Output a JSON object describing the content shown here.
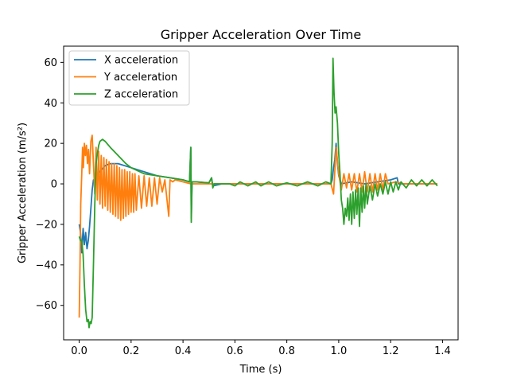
{
  "chart_data": {
    "type": "line",
    "title": "Gripper Acceleration Over Time",
    "xlabel": "Time (s)",
    "ylabel": "Gripper Acceleration (m/s²)",
    "xlim": [
      -0.06,
      1.46
    ],
    "ylim": [
      -77,
      68
    ],
    "x_ticks": [
      0.0,
      0.2,
      0.4,
      0.6,
      0.8,
      1.0,
      1.2,
      1.4
    ],
    "x_tick_labels": [
      "0.0",
      "0.2",
      "0.4",
      "0.6",
      "0.8",
      "1.0",
      "1.2",
      "1.4"
    ],
    "y_ticks": [
      -60,
      -40,
      -20,
      0,
      20,
      40,
      60
    ],
    "y_tick_labels": [
      "−60",
      "−40",
      "−20",
      "0",
      "20",
      "40",
      "60"
    ],
    "grid": false,
    "legend_position": "top-left",
    "series": [
      {
        "name": "X acceleration",
        "color": "#1f77b4",
        "points": [
          [
            0.0,
            -20
          ],
          [
            0.005,
            -24
          ],
          [
            0.01,
            -34
          ],
          [
            0.015,
            -22
          ],
          [
            0.02,
            -30
          ],
          [
            0.025,
            -24
          ],
          [
            0.03,
            -32
          ],
          [
            0.035,
            -28
          ],
          [
            0.04,
            -21
          ],
          [
            0.045,
            -12
          ],
          [
            0.05,
            -3
          ],
          [
            0.055,
            2
          ],
          [
            0.06,
            0
          ],
          [
            0.07,
            4
          ],
          [
            0.08,
            6
          ],
          [
            0.1,
            9
          ],
          [
            0.12,
            10
          ],
          [
            0.15,
            10
          ],
          [
            0.2,
            8
          ],
          [
            0.25,
            6
          ],
          [
            0.3,
            4
          ],
          [
            0.35,
            3
          ],
          [
            0.4,
            2
          ],
          [
            0.425,
            1
          ],
          [
            0.43,
            18
          ],
          [
            0.432,
            -17
          ],
          [
            0.435,
            1
          ],
          [
            0.45,
            1
          ],
          [
            0.5,
            0.5
          ],
          [
            0.51,
            3
          ],
          [
            0.515,
            -1
          ],
          [
            0.55,
            0
          ],
          [
            0.6,
            0
          ],
          [
            0.7,
            0
          ],
          [
            0.8,
            0
          ],
          [
            0.9,
            0
          ],
          [
            0.97,
            0
          ],
          [
            0.975,
            2
          ],
          [
            0.98,
            8
          ],
          [
            0.985,
            12
          ],
          [
            0.99,
            20
          ],
          [
            0.995,
            10
          ],
          [
            1.0,
            4
          ],
          [
            1.01,
            0
          ],
          [
            1.05,
            1
          ],
          [
            1.1,
            0
          ],
          [
            1.15,
            1
          ],
          [
            1.2,
            2
          ],
          [
            1.225,
            3
          ],
          [
            1.23,
            0
          ],
          [
            1.3,
            0
          ],
          [
            1.38,
            0
          ]
        ]
      },
      {
        "name": "Y acceleration",
        "color": "#ff7f0e",
        "points": [
          [
            0.0,
            -66
          ],
          [
            0.003,
            -40
          ],
          [
            0.006,
            -10
          ],
          [
            0.01,
            5
          ],
          [
            0.013,
            18
          ],
          [
            0.016,
            8
          ],
          [
            0.02,
            20
          ],
          [
            0.024,
            14
          ],
          [
            0.028,
            19
          ],
          [
            0.032,
            10
          ],
          [
            0.036,
            17
          ],
          [
            0.04,
            5
          ],
          [
            0.045,
            21
          ],
          [
            0.05,
            24
          ],
          [
            0.055,
            10
          ],
          [
            0.06,
            -5
          ],
          [
            0.065,
            18
          ],
          [
            0.07,
            -8
          ],
          [
            0.075,
            16
          ],
          [
            0.08,
            -10
          ],
          [
            0.085,
            14
          ],
          [
            0.09,
            -12
          ],
          [
            0.095,
            13
          ],
          [
            0.1,
            -11
          ],
          [
            0.105,
            12
          ],
          [
            0.11,
            -13
          ],
          [
            0.115,
            11
          ],
          [
            0.12,
            -14
          ],
          [
            0.125,
            10
          ],
          [
            0.13,
            -15
          ],
          [
            0.135,
            10
          ],
          [
            0.14,
            -16
          ],
          [
            0.145,
            9
          ],
          [
            0.15,
            -17
          ],
          [
            0.155,
            8
          ],
          [
            0.16,
            -18
          ],
          [
            0.165,
            7
          ],
          [
            0.17,
            -17
          ],
          [
            0.175,
            7
          ],
          [
            0.18,
            -16
          ],
          [
            0.185,
            6
          ],
          [
            0.19,
            -15
          ],
          [
            0.195,
            6
          ],
          [
            0.2,
            -14
          ],
          [
            0.205,
            5
          ],
          [
            0.21,
            -14
          ],
          [
            0.215,
            5
          ],
          [
            0.22,
            -13
          ],
          [
            0.23,
            4
          ],
          [
            0.24,
            -12
          ],
          [
            0.25,
            4
          ],
          [
            0.26,
            -11
          ],
          [
            0.27,
            3
          ],
          [
            0.28,
            -11
          ],
          [
            0.29,
            3
          ],
          [
            0.3,
            -10
          ],
          [
            0.31,
            3
          ],
          [
            0.32,
            -4
          ],
          [
            0.33,
            2
          ],
          [
            0.345,
            -16
          ],
          [
            0.35,
            2
          ],
          [
            0.36,
            1
          ],
          [
            0.37,
            2
          ],
          [
            0.4,
            1
          ],
          [
            0.43,
            0
          ],
          [
            0.45,
            0
          ],
          [
            0.5,
            0
          ],
          [
            0.52,
            0
          ],
          [
            0.55,
            0
          ],
          [
            0.6,
            0
          ],
          [
            0.7,
            0
          ],
          [
            0.8,
            0
          ],
          [
            0.9,
            0
          ],
          [
            0.97,
            0
          ],
          [
            0.98,
            -5
          ],
          [
            0.99,
            18
          ],
          [
            1.0,
            5
          ],
          [
            1.01,
            -3
          ],
          [
            1.02,
            5
          ],
          [
            1.03,
            -2
          ],
          [
            1.04,
            5
          ],
          [
            1.05,
            -3
          ],
          [
            1.06,
            5
          ],
          [
            1.07,
            -4
          ],
          [
            1.08,
            5
          ],
          [
            1.09,
            -4
          ],
          [
            1.1,
            6
          ],
          [
            1.11,
            -4
          ],
          [
            1.12,
            5
          ],
          [
            1.13,
            -4
          ],
          [
            1.14,
            5
          ],
          [
            1.15,
            -3
          ],
          [
            1.16,
            5
          ],
          [
            1.17,
            -3
          ],
          [
            1.18,
            5
          ],
          [
            1.19,
            0
          ],
          [
            1.22,
            1
          ],
          [
            1.25,
            0
          ],
          [
            1.38,
            0
          ]
        ]
      },
      {
        "name": "Z acceleration",
        "color": "#2ca02c",
        "points": [
          [
            0.0,
            -26
          ],
          [
            0.005,
            -28
          ],
          [
            0.01,
            -28
          ],
          [
            0.015,
            -35
          ],
          [
            0.02,
            -50
          ],
          [
            0.025,
            -62
          ],
          [
            0.03,
            -68
          ],
          [
            0.035,
            -67
          ],
          [
            0.038,
            -71
          ],
          [
            0.042,
            -68
          ],
          [
            0.046,
            -69
          ],
          [
            0.05,
            -66
          ],
          [
            0.055,
            -40
          ],
          [
            0.06,
            -10
          ],
          [
            0.065,
            10
          ],
          [
            0.07,
            15
          ],
          [
            0.075,
            19
          ],
          [
            0.08,
            21
          ],
          [
            0.09,
            22
          ],
          [
            0.1,
            21
          ],
          [
            0.12,
            18
          ],
          [
            0.15,
            14
          ],
          [
            0.18,
            10
          ],
          [
            0.2,
            8
          ],
          [
            0.25,
            5
          ],
          [
            0.3,
            4
          ],
          [
            0.35,
            3
          ],
          [
            0.4,
            2
          ],
          [
            0.425,
            1
          ],
          [
            0.43,
            18
          ],
          [
            0.432,
            -19
          ],
          [
            0.435,
            1
          ],
          [
            0.45,
            1
          ],
          [
            0.5,
            0.5
          ],
          [
            0.51,
            3
          ],
          [
            0.515,
            -2
          ],
          [
            0.52,
            0
          ],
          [
            0.55,
            0
          ],
          [
            0.58,
            0
          ],
          [
            0.6,
            -1
          ],
          [
            0.62,
            1
          ],
          [
            0.65,
            -1
          ],
          [
            0.68,
            1
          ],
          [
            0.7,
            -1
          ],
          [
            0.73,
            1
          ],
          [
            0.76,
            -1
          ],
          [
            0.8,
            0.5
          ],
          [
            0.84,
            -1
          ],
          [
            0.88,
            1
          ],
          [
            0.92,
            -1
          ],
          [
            0.95,
            1
          ],
          [
            0.97,
            0
          ],
          [
            0.975,
            20
          ],
          [
            0.978,
            62
          ],
          [
            0.982,
            45
          ],
          [
            0.986,
            35
          ],
          [
            0.99,
            38
          ],
          [
            0.995,
            30
          ],
          [
            1.0,
            15
          ],
          [
            1.005,
            5
          ],
          [
            1.01,
            -8
          ],
          [
            1.015,
            -12
          ],
          [
            1.02,
            -20
          ],
          [
            1.025,
            -12
          ],
          [
            1.03,
            -16
          ],
          [
            1.035,
            -7
          ],
          [
            1.04,
            -18
          ],
          [
            1.045,
            -5
          ],
          [
            1.05,
            -20
          ],
          [
            1.055,
            -4
          ],
          [
            1.06,
            -17
          ],
          [
            1.065,
            -3
          ],
          [
            1.07,
            -15
          ],
          [
            1.075,
            -2
          ],
          [
            1.08,
            -21
          ],
          [
            1.085,
            -2
          ],
          [
            1.09,
            -14
          ],
          [
            1.095,
            -1
          ],
          [
            1.1,
            -12
          ],
          [
            1.105,
            0
          ],
          [
            1.11,
            -10
          ],
          [
            1.12,
            -1
          ],
          [
            1.13,
            -8
          ],
          [
            1.14,
            0
          ],
          [
            1.15,
            -6
          ],
          [
            1.16,
            0
          ],
          [
            1.17,
            -5
          ],
          [
            1.18,
            1
          ],
          [
            1.19,
            -5
          ],
          [
            1.2,
            1
          ],
          [
            1.21,
            -4
          ],
          [
            1.22,
            1
          ],
          [
            1.23,
            -3
          ],
          [
            1.24,
            1
          ],
          [
            1.26,
            -2
          ],
          [
            1.28,
            2
          ],
          [
            1.3,
            -1
          ],
          [
            1.32,
            2
          ],
          [
            1.34,
            -1
          ],
          [
            1.36,
            2
          ],
          [
            1.38,
            -1
          ]
        ]
      }
    ]
  }
}
